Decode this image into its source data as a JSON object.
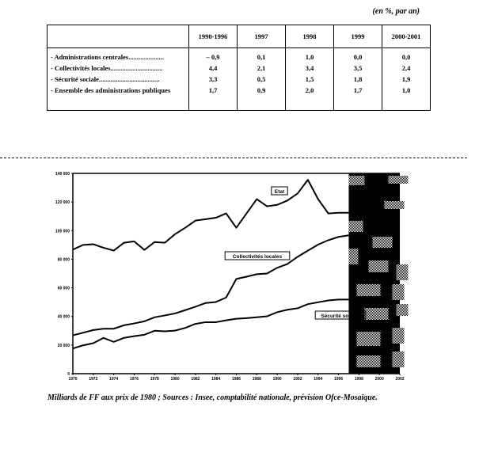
{
  "table": {
    "unit": "(en %, par an)",
    "columns": [
      "1990-1996",
      "1997",
      "1998",
      "1999",
      "2000-2001"
    ],
    "rows": [
      {
        "label": "- Administrations centrales.....................",
        "values": [
          "– 0,9",
          "0,1",
          "1,0",
          "0,0",
          "0,0"
        ]
      },
      {
        "label": "- Collectivités locales...............................",
        "values": [
          "4,4",
          "2,1",
          "3,4",
          "3,5",
          "2,4"
        ]
      },
      {
        "label": "- Sécurité sociale....................................",
        "values": [
          "3,3",
          "0,5",
          "1,5",
          "1,8",
          "1,9"
        ]
      },
      {
        "label": "- Ensemble des administrations publiques",
        "values": [
          "1,7",
          "0,9",
          "2,0",
          "1,7",
          "1,0"
        ]
      }
    ]
  },
  "chart_data": {
    "type": "line",
    "ylim": [
      0,
      140000
    ],
    "xlim": [
      1970,
      2002
    ],
    "y_ticks": [
      "0",
      "20 000",
      "40 000",
      "60 000",
      "80 000",
      "100 000",
      "120 000",
      "140 000"
    ],
    "x_ticks": [
      "1970",
      "1972",
      "1974",
      "1976",
      "1978",
      "1980",
      "1982",
      "1984",
      "1986",
      "1988",
      "1990",
      "1992",
      "1994",
      "1996",
      "1998",
      "2000",
      "2002"
    ],
    "forecast_shaded_from": 1997,
    "x": [
      1970,
      1971,
      1972,
      1973,
      1974,
      1975,
      1976,
      1977,
      1978,
      1979,
      1980,
      1981,
      1982,
      1983,
      1984,
      1985,
      1986,
      1987,
      1988,
      1989,
      1990,
      1991,
      1992,
      1993,
      1994,
      1995,
      1996,
      1997
    ],
    "series": [
      {
        "name": "Etat",
        "values": [
          86700,
          90000,
          90500,
          88000,
          86000,
          91500,
          92500,
          86500,
          92000,
          91500,
          97500,
          102000,
          107000,
          108000,
          109000,
          112000,
          102000,
          112000,
          122000,
          117000,
          118000,
          121000,
          126000,
          135500,
          122000,
          112000,
          112500,
          112500
        ]
      },
      {
        "name": "Collectivités locales",
        "values": [
          26800,
          28600,
          30500,
          31400,
          31400,
          33800,
          35100,
          36600,
          39400,
          40700,
          42100,
          44400,
          46800,
          49400,
          50100,
          53200,
          66200,
          67800,
          69500,
          70000,
          74000,
          76700,
          81700,
          86000,
          90200,
          93300,
          95600,
          96700
        ]
      },
      {
        "name": "Sécurité sociale",
        "values": [
          17600,
          19800,
          21300,
          25000,
          22200,
          25000,
          26200,
          27200,
          30000,
          29600,
          30100,
          32000,
          34800,
          36000,
          36000,
          37300,
          38400,
          38800,
          39400,
          40100,
          43000,
          44700,
          45700,
          48600,
          49900,
          51200,
          51800,
          51800
        ]
      }
    ],
    "line_color": "#000000",
    "grid": false
  },
  "caption": "Milliards de FF aux prix de 1980 ; Sources : Insee, comptabilité nationale, prévision Ofce-Mosaïque."
}
